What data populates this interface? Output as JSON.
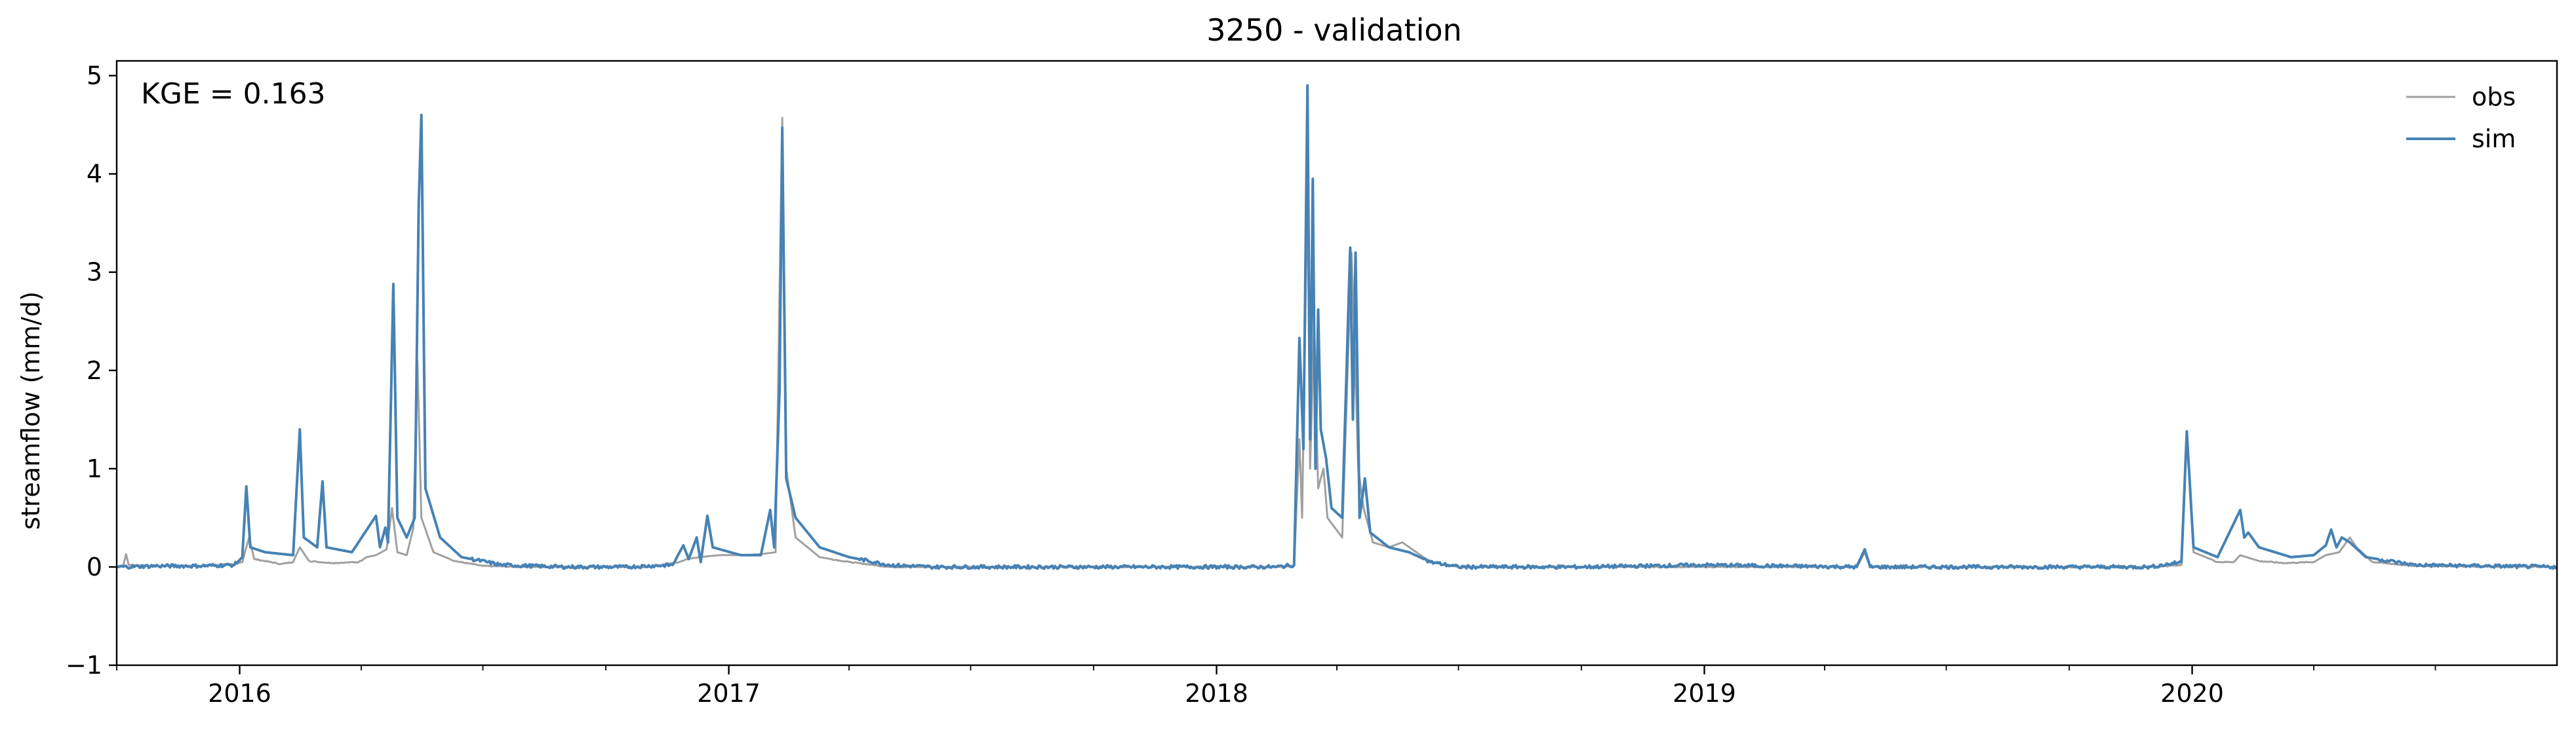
{
  "chart_data": {
    "type": "line",
    "title": "3250 - validation",
    "xlabel": "",
    "ylabel": "streamflow (mm/d)",
    "annotation": "KGE = 0.163",
    "xlim": [
      "2015-10-01",
      "2020-09-30"
    ],
    "ylim": [
      -1,
      5.15
    ],
    "yticks": [
      -1,
      0,
      1,
      2,
      3,
      4,
      5
    ],
    "ytick_labels": [
      "−1",
      "0",
      "1",
      "2",
      "3",
      "4",
      "5"
    ],
    "xticks": [
      "2016-01-01",
      "2017-01-01",
      "2018-01-01",
      "2019-01-01",
      "2020-01-01"
    ],
    "xtick_labels": [
      "2016",
      "2017",
      "2018",
      "2019",
      "2020"
    ],
    "grid": false,
    "legend_position": "top-right",
    "series": [
      {
        "name": "obs",
        "color": "#a0a0a0",
        "points": [
          [
            "2015-10-01",
            0.0
          ],
          [
            "2015-10-06",
            0.02
          ],
          [
            "2015-10-08",
            0.13
          ],
          [
            "2015-10-10",
            0.02
          ],
          [
            "2015-11-01",
            0.01
          ],
          [
            "2015-12-01",
            0.01
          ],
          [
            "2015-12-28",
            0.03
          ],
          [
            "2016-01-03",
            0.05
          ],
          [
            "2016-01-08",
            0.3
          ],
          [
            "2016-01-12",
            0.08
          ],
          [
            "2016-02-01",
            0.03
          ],
          [
            "2016-02-10",
            0.05
          ],
          [
            "2016-02-15",
            0.2
          ],
          [
            "2016-02-22",
            0.06
          ],
          [
            "2016-03-10",
            0.04
          ],
          [
            "2016-03-30",
            0.05
          ],
          [
            "2016-04-05",
            0.1
          ],
          [
            "2016-04-12",
            0.12
          ],
          [
            "2016-04-20",
            0.18
          ],
          [
            "2016-04-24",
            0.6
          ],
          [
            "2016-04-28",
            0.15
          ],
          [
            "2016-05-05",
            0.12
          ],
          [
            "2016-05-10",
            0.4
          ],
          [
            "2016-05-13",
            2.1
          ],
          [
            "2016-05-16",
            0.5
          ],
          [
            "2016-05-25",
            0.15
          ],
          [
            "2016-06-10",
            0.06
          ],
          [
            "2016-07-01",
            0.01
          ],
          [
            "2016-08-01",
            0.0
          ],
          [
            "2016-09-01",
            0.0
          ],
          [
            "2016-10-01",
            0.0
          ],
          [
            "2016-11-01",
            0.0
          ],
          [
            "2016-11-25",
            0.05
          ],
          [
            "2016-12-01",
            0.08
          ],
          [
            "2016-12-10",
            0.1
          ],
          [
            "2016-12-25",
            0.12
          ],
          [
            "2017-01-10",
            0.12
          ],
          [
            "2017-01-25",
            0.13
          ],
          [
            "2017-02-05",
            0.15
          ],
          [
            "2017-02-10",
            4.57
          ],
          [
            "2017-02-13",
            1.0
          ],
          [
            "2017-02-20",
            0.3
          ],
          [
            "2017-03-10",
            0.1
          ],
          [
            "2017-04-01",
            0.05
          ],
          [
            "2017-05-01",
            0.0
          ],
          [
            "2017-06-01",
            0.0
          ],
          [
            "2017-08-01",
            0.0
          ],
          [
            "2017-10-01",
            0.0
          ],
          [
            "2017-12-01",
            0.0
          ],
          [
            "2018-01-20",
            0.0
          ],
          [
            "2018-02-15",
            0.0
          ],
          [
            "2018-02-28",
            0.01
          ],
          [
            "2018-03-04",
            1.3
          ],
          [
            "2018-03-06",
            0.5
          ],
          [
            "2018-03-10",
            3.9
          ],
          [
            "2018-03-12",
            1.0
          ],
          [
            "2018-03-15",
            2.5
          ],
          [
            "2018-03-18",
            0.8
          ],
          [
            "2018-03-22",
            1.0
          ],
          [
            "2018-03-25",
            0.5
          ],
          [
            "2018-04-05",
            0.3
          ],
          [
            "2018-04-12",
            3.2
          ],
          [
            "2018-04-14",
            2.4
          ],
          [
            "2018-04-17",
            1.0
          ],
          [
            "2018-04-21",
            0.6
          ],
          [
            "2018-04-28",
            0.25
          ],
          [
            "2018-05-10",
            0.2
          ],
          [
            "2018-05-20",
            0.25
          ],
          [
            "2018-06-10",
            0.05
          ],
          [
            "2018-07-01",
            0.0
          ],
          [
            "2018-10-01",
            0.0
          ],
          [
            "2019-01-01",
            0.0
          ],
          [
            "2019-04-25",
            0.0
          ],
          [
            "2019-05-01",
            0.15
          ],
          [
            "2019-05-05",
            0.0
          ],
          [
            "2019-09-01",
            0.0
          ],
          [
            "2019-12-01",
            0.0
          ],
          [
            "2019-12-24",
            0.02
          ],
          [
            "2019-12-28",
            1.38
          ],
          [
            "2020-01-02",
            0.15
          ],
          [
            "2020-01-20",
            0.05
          ],
          [
            "2020-02-01",
            0.05
          ],
          [
            "2020-02-06",
            0.12
          ],
          [
            "2020-02-20",
            0.06
          ],
          [
            "2020-03-10",
            0.04
          ],
          [
            "2020-04-01",
            0.05
          ],
          [
            "2020-04-10",
            0.12
          ],
          [
            "2020-04-20",
            0.15
          ],
          [
            "2020-04-28",
            0.3
          ],
          [
            "2020-05-03",
            0.2
          ],
          [
            "2020-05-15",
            0.05
          ],
          [
            "2020-06-15",
            0.01
          ],
          [
            "2020-09-30",
            0.0
          ]
        ]
      },
      {
        "name": "sim",
        "color": "#4682b4",
        "points": [
          [
            "2015-10-01",
            0.0
          ],
          [
            "2015-11-01",
            0.01
          ],
          [
            "2015-12-01",
            0.01
          ],
          [
            "2015-12-28",
            0.02
          ],
          [
            "2016-01-03",
            0.1
          ],
          [
            "2016-01-06",
            0.82
          ],
          [
            "2016-01-09",
            0.2
          ],
          [
            "2016-01-20",
            0.15
          ],
          [
            "2016-02-10",
            0.12
          ],
          [
            "2016-02-15",
            1.4
          ],
          [
            "2016-02-18",
            0.3
          ],
          [
            "2016-02-28",
            0.2
          ],
          [
            "2016-03-03",
            0.87
          ],
          [
            "2016-03-06",
            0.2
          ],
          [
            "2016-03-25",
            0.15
          ],
          [
            "2016-04-12",
            0.52
          ],
          [
            "2016-04-15",
            0.2
          ],
          [
            "2016-04-19",
            0.4
          ],
          [
            "2016-04-21",
            0.25
          ],
          [
            "2016-04-25",
            2.88
          ],
          [
            "2016-04-28",
            0.5
          ],
          [
            "2016-05-05",
            0.3
          ],
          [
            "2016-05-11",
            0.5
          ],
          [
            "2016-05-14",
            3.7
          ],
          [
            "2016-05-16",
            4.6
          ],
          [
            "2016-05-19",
            0.8
          ],
          [
            "2016-05-30",
            0.3
          ],
          [
            "2016-06-15",
            0.1
          ],
          [
            "2016-07-15",
            0.02
          ],
          [
            "2016-09-01",
            0.0
          ],
          [
            "2016-10-15",
            0.0
          ],
          [
            "2016-11-20",
            0.02
          ],
          [
            "2016-11-28",
            0.22
          ],
          [
            "2016-12-02",
            0.08
          ],
          [
            "2016-12-08",
            0.3
          ],
          [
            "2016-12-11",
            0.05
          ],
          [
            "2016-12-16",
            0.52
          ],
          [
            "2016-12-20",
            0.2
          ],
          [
            "2017-01-10",
            0.12
          ],
          [
            "2017-01-25",
            0.12
          ],
          [
            "2017-02-01",
            0.58
          ],
          [
            "2017-02-04",
            0.2
          ],
          [
            "2017-02-08",
            1.8
          ],
          [
            "2017-02-10",
            4.47
          ],
          [
            "2017-02-13",
            0.9
          ],
          [
            "2017-02-20",
            0.5
          ],
          [
            "2017-03-10",
            0.2
          ],
          [
            "2017-04-01",
            0.1
          ],
          [
            "2017-05-01",
            0.02
          ],
          [
            "2017-06-01",
            0.0
          ],
          [
            "2017-08-01",
            0.0
          ],
          [
            "2017-10-01",
            0.0
          ],
          [
            "2017-12-01",
            0.0
          ],
          [
            "2018-01-20",
            0.0
          ],
          [
            "2018-02-15",
            0.0
          ],
          [
            "2018-02-28",
            0.02
          ],
          [
            "2018-03-04",
            2.33
          ],
          [
            "2018-03-07",
            1.2
          ],
          [
            "2018-03-10",
            4.9
          ],
          [
            "2018-03-12",
            1.3
          ],
          [
            "2018-03-14",
            3.95
          ],
          [
            "2018-03-16",
            1.0
          ],
          [
            "2018-03-18",
            2.62
          ],
          [
            "2018-03-20",
            1.4
          ],
          [
            "2018-03-24",
            1.1
          ],
          [
            "2018-03-28",
            0.6
          ],
          [
            "2018-04-05",
            0.5
          ],
          [
            "2018-04-11",
            3.25
          ],
          [
            "2018-04-13",
            1.5
          ],
          [
            "2018-04-15",
            3.2
          ],
          [
            "2018-04-18",
            0.5
          ],
          [
            "2018-04-22",
            0.9
          ],
          [
            "2018-04-26",
            0.35
          ],
          [
            "2018-05-10",
            0.2
          ],
          [
            "2018-05-25",
            0.15
          ],
          [
            "2018-06-10",
            0.05
          ],
          [
            "2018-07-01",
            0.0
          ],
          [
            "2018-10-01",
            0.0
          ],
          [
            "2019-01-01",
            0.02
          ],
          [
            "2019-04-25",
            0.0
          ],
          [
            "2019-05-01",
            0.18
          ],
          [
            "2019-05-05",
            0.0
          ],
          [
            "2019-09-01",
            0.0
          ],
          [
            "2019-12-01",
            0.0
          ],
          [
            "2019-12-24",
            0.05
          ],
          [
            "2019-12-28",
            1.38
          ],
          [
            "2020-01-02",
            0.2
          ],
          [
            "2020-01-20",
            0.1
          ],
          [
            "2020-02-06",
            0.58
          ],
          [
            "2020-02-09",
            0.3
          ],
          [
            "2020-02-12",
            0.35
          ],
          [
            "2020-02-20",
            0.2
          ],
          [
            "2020-03-15",
            0.1
          ],
          [
            "2020-04-01",
            0.12
          ],
          [
            "2020-04-10",
            0.22
          ],
          [
            "2020-04-14",
            0.38
          ],
          [
            "2020-04-18",
            0.2
          ],
          [
            "2020-04-22",
            0.3
          ],
          [
            "2020-04-28",
            0.25
          ],
          [
            "2020-05-10",
            0.1
          ],
          [
            "2020-06-15",
            0.02
          ],
          [
            "2020-09-30",
            0.0
          ]
        ]
      }
    ]
  }
}
